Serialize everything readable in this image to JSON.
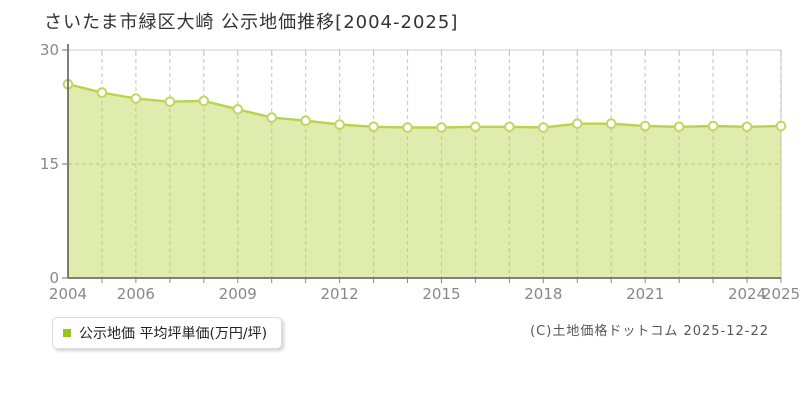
{
  "page": {
    "title": "さいたま市緑区大崎 公示地価推移[2004-2025]",
    "copyright": "(C)土地価格ドットコム 2025-12-22"
  },
  "legend": {
    "label": "公示地価 平均坪単価(万円/坪)",
    "swatch_color": "#9cc41e"
  },
  "chart_data": {
    "type": "area",
    "title": "さいたま市緑区大崎 公示地価推移[2004-2025]",
    "x": [
      2004,
      2005,
      2006,
      2007,
      2008,
      2009,
      2010,
      2011,
      2012,
      2013,
      2014,
      2015,
      2016,
      2017,
      2018,
      2019,
      2020,
      2021,
      2022,
      2023,
      2024,
      2025
    ],
    "series": [
      {
        "name": "公示地価 平均坪単価(万円/坪)",
        "values": [
          25.5,
          24.4,
          23.6,
          23.2,
          23.3,
          22.2,
          21.1,
          20.7,
          20.2,
          19.9,
          19.8,
          19.8,
          19.9,
          19.9,
          19.8,
          20.3,
          20.3,
          20.0,
          19.9,
          20.0,
          19.9,
          20.0
        ]
      }
    ],
    "xlabel": "",
    "ylabel": "",
    "ylim": [
      0,
      30
    ],
    "yticks": [
      0,
      15,
      30
    ],
    "xticks_labeled": [
      2004,
      2006,
      2009,
      2012,
      2015,
      2018,
      2021,
      2024,
      2025
    ],
    "grid": {
      "vertical": "dashed line at every year",
      "horizontal_dashed_at": [
        15
      ]
    },
    "legend_position": "bottom-left",
    "colors": {
      "line": "#b7d44e",
      "area_fill": "rgba(183,212,73,0.45)",
      "marker_fill": "#ffffff",
      "marker_stroke": "#bfd862",
      "axis": "#555555",
      "grid_dash": "#cccccc",
      "plot_border": "#dddddd",
      "top_tick": "#bbbbbb",
      "bottom_tick": "#888888",
      "tick_label": "#888888"
    }
  }
}
